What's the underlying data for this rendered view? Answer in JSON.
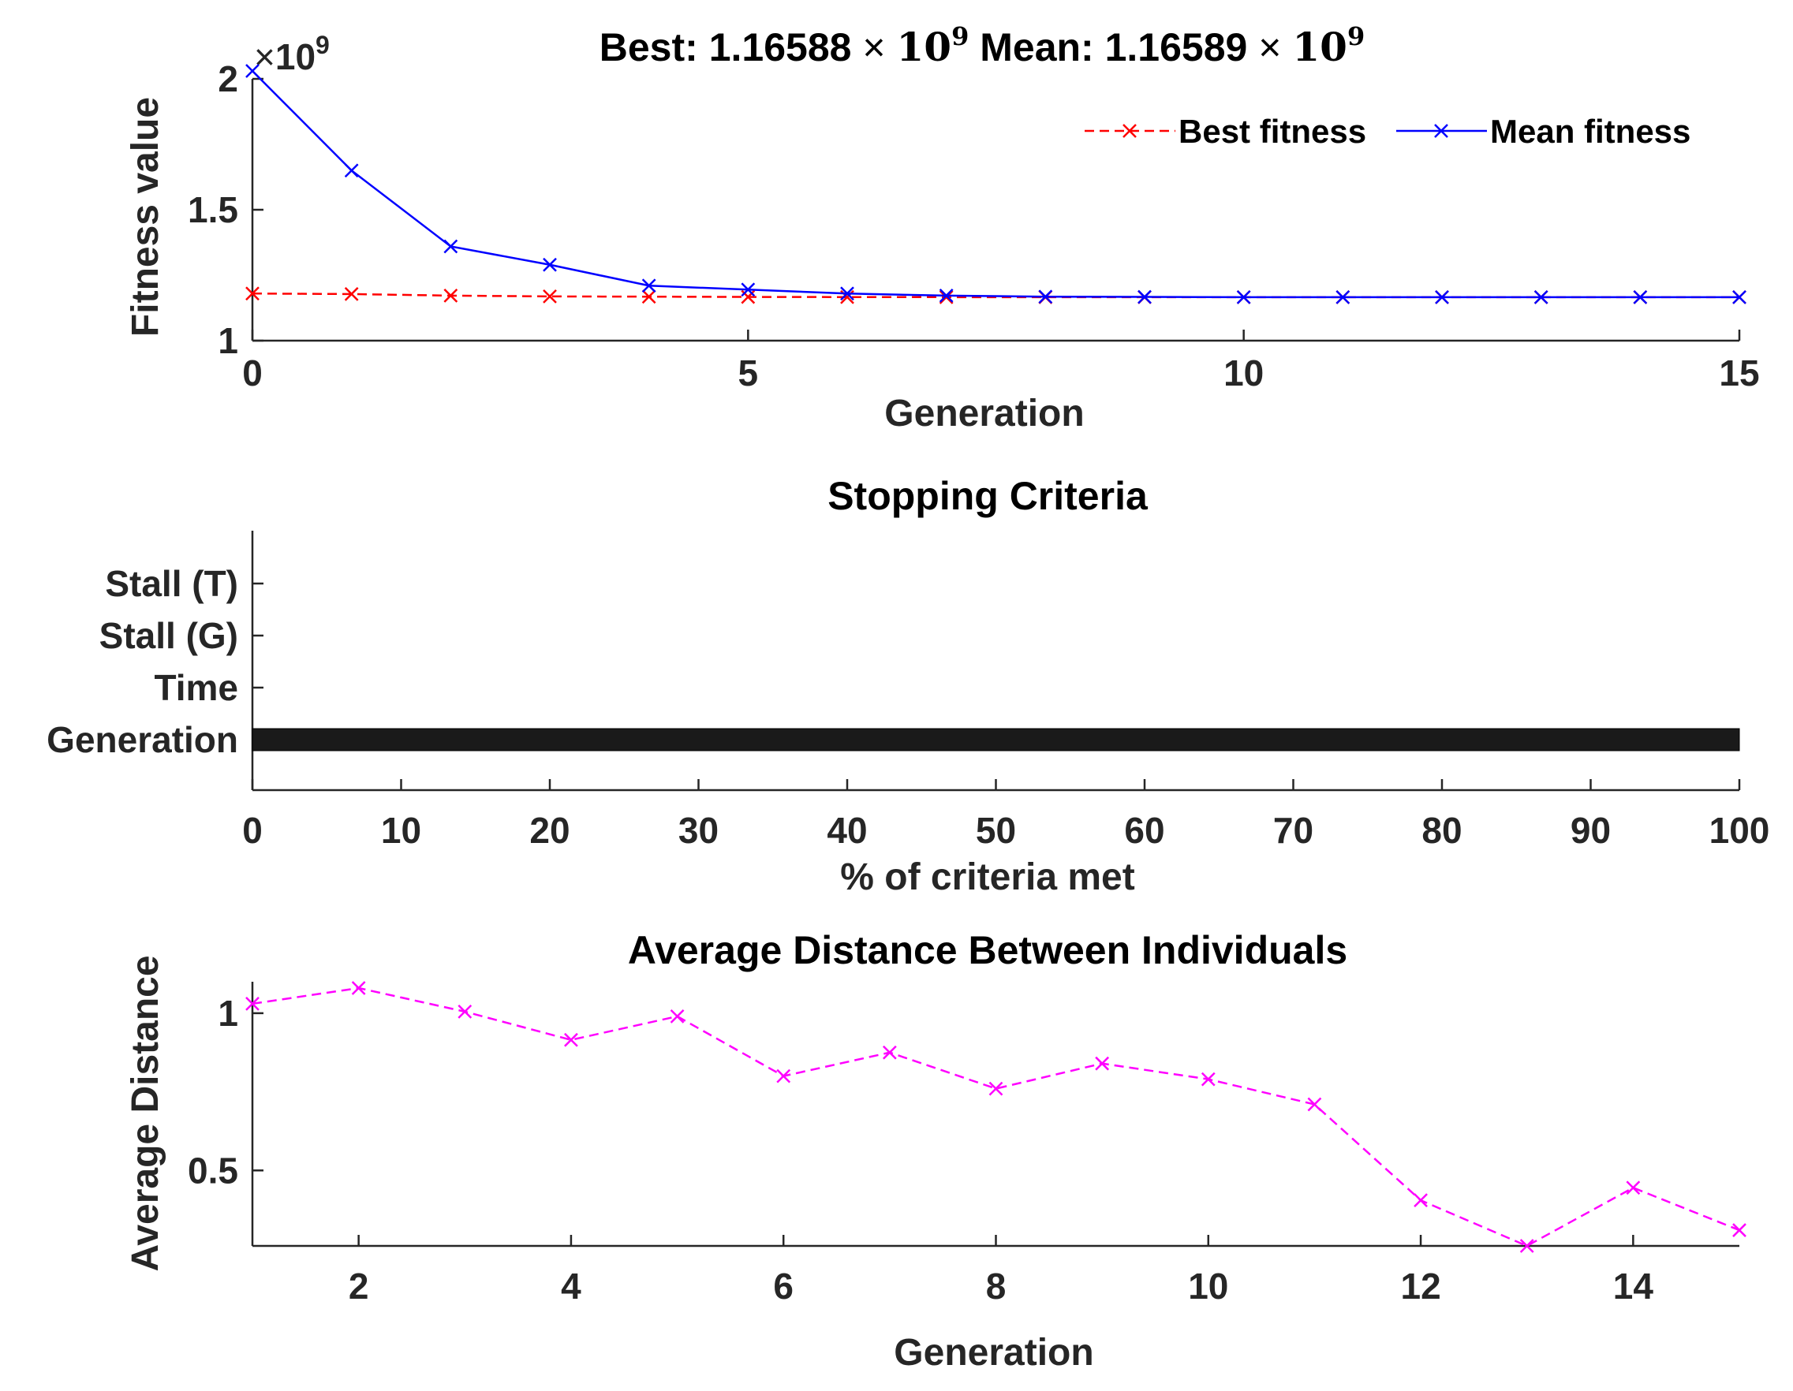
{
  "chart_data": [
    {
      "type": "line",
      "title_best_label": "Best:",
      "title_best_mantissa": "1.16588",
      "title_mean_label": "Mean:",
      "title_mean_mantissa": "1.16589",
      "title_times": "×",
      "title_base": "10",
      "title_power": "9",
      "exponent_times": "×",
      "exponent_base": "10",
      "exponent_power": "9",
      "xlabel": "Generation",
      "ylabel": "Fitness value",
      "xlim": [
        0,
        15
      ],
      "ylim": [
        1,
        2
      ],
      "xticks": [
        "0",
        "5",
        "10",
        "15"
      ],
      "yticks": [
        "1",
        "1.5",
        "2"
      ],
      "legend_position": "top-right",
      "series": [
        {
          "name": "Best fitness",
          "color": "#ff0000",
          "dashed": true,
          "x": [
            0,
            1,
            2,
            3,
            4,
            5,
            6,
            7,
            8,
            9,
            10,
            11,
            12,
            13,
            14,
            15
          ],
          "values": [
            1.18,
            1.178,
            1.172,
            1.169,
            1.168,
            1.167,
            1.1665,
            1.1662,
            1.166,
            1.1659,
            1.1659,
            1.16588,
            1.16588,
            1.16588,
            1.16588,
            1.16588
          ]
        },
        {
          "name": "Mean fitness",
          "color": "#0000ff",
          "dashed": false,
          "x": [
            0,
            1,
            2,
            3,
            4,
            5,
            6,
            7,
            8,
            9,
            10,
            11,
            12,
            13,
            14,
            15
          ],
          "values": [
            2.03,
            1.65,
            1.36,
            1.29,
            1.21,
            1.195,
            1.18,
            1.172,
            1.168,
            1.167,
            1.166,
            1.1659,
            1.1659,
            1.16589,
            1.16589,
            1.16589
          ]
        }
      ]
    },
    {
      "type": "bar",
      "title": "Stopping Criteria",
      "xlabel": "% of criteria met",
      "xlim": [
        0,
        100
      ],
      "xticks": [
        "0",
        "10",
        "20",
        "30",
        "40",
        "50",
        "60",
        "70",
        "80",
        "90",
        "100"
      ],
      "categories": [
        "Stall (T)",
        "Stall (G)",
        "Time",
        "Generation"
      ],
      "values": [
        0,
        0,
        0,
        100
      ],
      "bar_color": "#1a1a1a"
    },
    {
      "type": "line",
      "title": "Average Distance Between Individuals",
      "xlabel": "Generation",
      "ylabel": "Average Distance",
      "xlim": [
        1,
        15
      ],
      "ylim": [
        0.26,
        1.1
      ],
      "xticks": [
        "2",
        "4",
        "6",
        "8",
        "10",
        "12",
        "14"
      ],
      "yticks": [
        "0.5",
        "1"
      ],
      "series": [
        {
          "name": "Average Distance",
          "color": "#ff00ff",
          "dashed": true,
          "x": [
            1,
            2,
            3,
            4,
            5,
            6,
            7,
            8,
            9,
            10,
            11,
            12,
            13,
            14,
            15
          ],
          "values": [
            1.03,
            1.08,
            1.005,
            0.915,
            0.99,
            0.8,
            0.875,
            0.76,
            0.84,
            0.79,
            0.71,
            0.405,
            0.26,
            0.445,
            0.31
          ]
        }
      ]
    }
  ]
}
